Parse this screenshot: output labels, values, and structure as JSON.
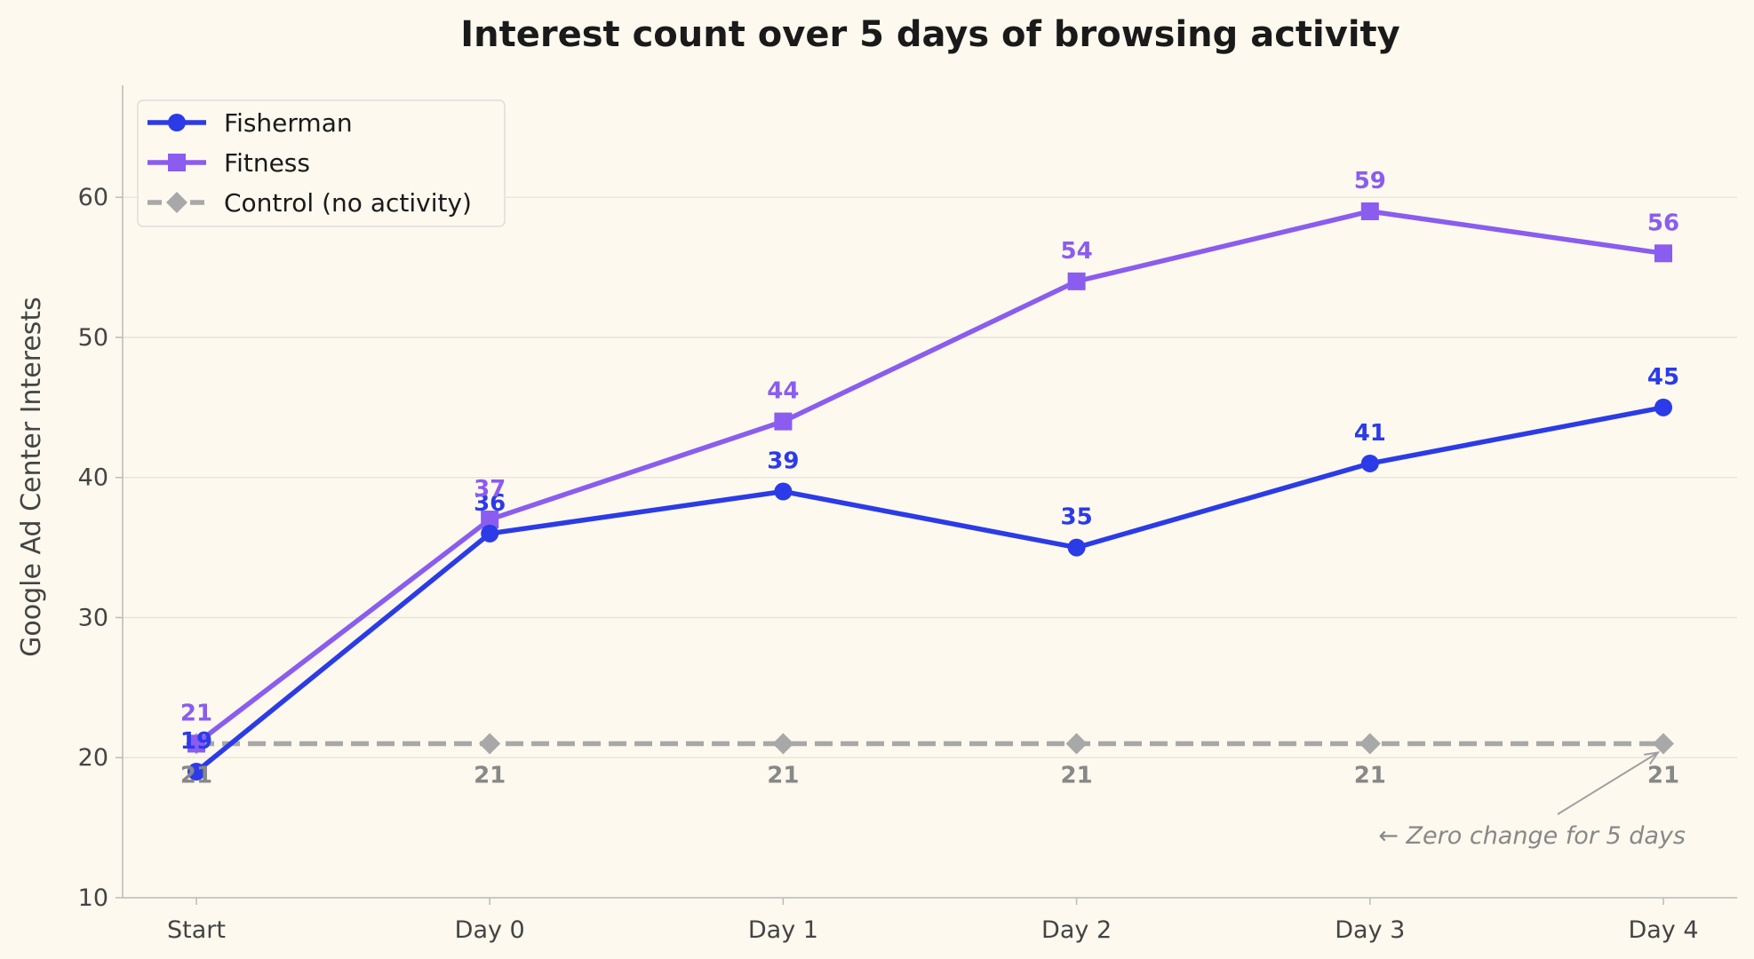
{
  "chart_data": {
    "type": "line",
    "title": "Interest count over 5 days of browsing activity",
    "xlabel": "",
    "ylabel": "Google Ad Center Interests",
    "categories": [
      "Start",
      "Day 0",
      "Day 1",
      "Day 2",
      "Day 3",
      "Day 4"
    ],
    "ylim": [
      10,
      68
    ],
    "yticks": [
      10,
      20,
      30,
      40,
      50,
      60
    ],
    "grid": "horizontal",
    "legend_position": "top-left",
    "series": [
      {
        "name": "Fisherman",
        "values": [
          19,
          36,
          39,
          35,
          41,
          45
        ],
        "color": "#2b3be8",
        "marker": "circle",
        "linestyle": "solid"
      },
      {
        "name": "Fitness",
        "values": [
          21,
          37,
          44,
          54,
          59,
          56
        ],
        "color": "#8a5cf0",
        "marker": "square",
        "linestyle": "solid"
      },
      {
        "name": "Control (no activity)",
        "values": [
          21,
          21,
          21,
          21,
          21,
          21
        ],
        "color": "#a8a8a8",
        "marker": "diamond",
        "linestyle": "dashed",
        "label_color": "#888888"
      }
    ],
    "annotation": {
      "text": "← Zero change for 5 days",
      "target_category": "Day 4",
      "target_value": 21
    }
  }
}
